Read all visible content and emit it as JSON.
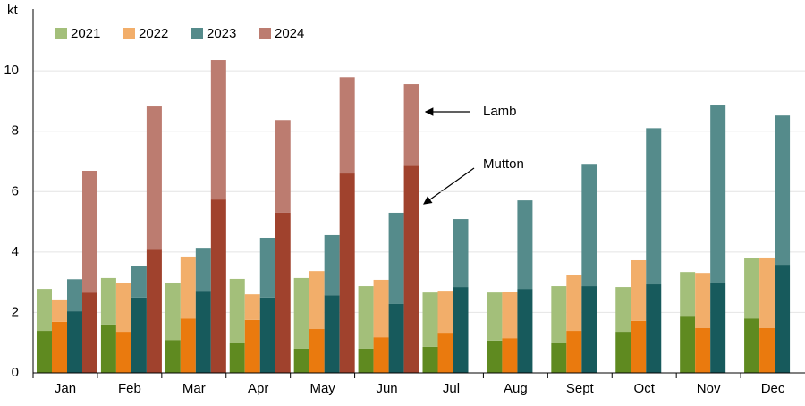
{
  "chart_data": {
    "type": "bar",
    "stacked": true,
    "y_unit": "kt",
    "categories": [
      "Jan",
      "Feb",
      "Mar",
      "Apr",
      "May",
      "Jun",
      "Jul",
      "Aug",
      "Sept",
      "Oct",
      "Nov",
      "Dec"
    ],
    "series": [
      {
        "name": "2021",
        "color": "#a3bf7a",
        "mutton_color": "#5f8a20",
        "mutton": [
          1.39,
          1.6,
          1.09,
          0.98,
          0.8,
          0.8,
          0.86,
          1.07,
          1.0,
          1.36,
          1.89,
          1.8
        ],
        "lamb": [
          1.39,
          1.54,
          1.9,
          2.13,
          2.34,
          2.07,
          1.8,
          1.59,
          1.87,
          1.48,
          1.45,
          1.99
        ]
      },
      {
        "name": "2022",
        "color": "#f2ae6a",
        "mutton_color": "#ea7a0e",
        "mutton": [
          1.69,
          1.36,
          1.8,
          1.75,
          1.45,
          1.18,
          1.33,
          1.15,
          1.39,
          1.72,
          1.48,
          1.48
        ],
        "lamb": [
          0.74,
          1.6,
          2.05,
          0.85,
          1.92,
          1.9,
          1.39,
          1.54,
          1.86,
          2.01,
          1.83,
          2.34
        ]
      },
      {
        "name": "2023",
        "color": "#558b8b",
        "mutton_color": "#175a5c",
        "mutton": [
          2.04,
          2.49,
          2.72,
          2.49,
          2.57,
          2.28,
          2.84,
          2.78,
          2.87,
          2.93,
          2.99,
          3.58
        ],
        "lamb": [
          1.06,
          1.06,
          1.42,
          1.98,
          1.99,
          3.02,
          2.25,
          2.93,
          4.05,
          5.17,
          5.89,
          4.94
        ]
      },
      {
        "name": "2024",
        "color": "#bc7c70",
        "mutton_color": "#a0422d",
        "mutton": [
          2.66,
          4.11,
          5.74,
          5.3,
          6.6,
          6.86,
          null,
          null,
          null,
          null,
          null,
          null
        ],
        "lamb": [
          4.03,
          4.71,
          4.62,
          3.07,
          3.19,
          2.7,
          null,
          null,
          null,
          null,
          null,
          null
        ]
      }
    ],
    "annotations": [
      "Lamb",
      "Mutton"
    ],
    "ylim": [
      0,
      11.9
    ],
    "yticks": [
      0,
      2,
      4,
      6,
      8,
      10
    ],
    "grid": true,
    "legend": "top-left"
  }
}
